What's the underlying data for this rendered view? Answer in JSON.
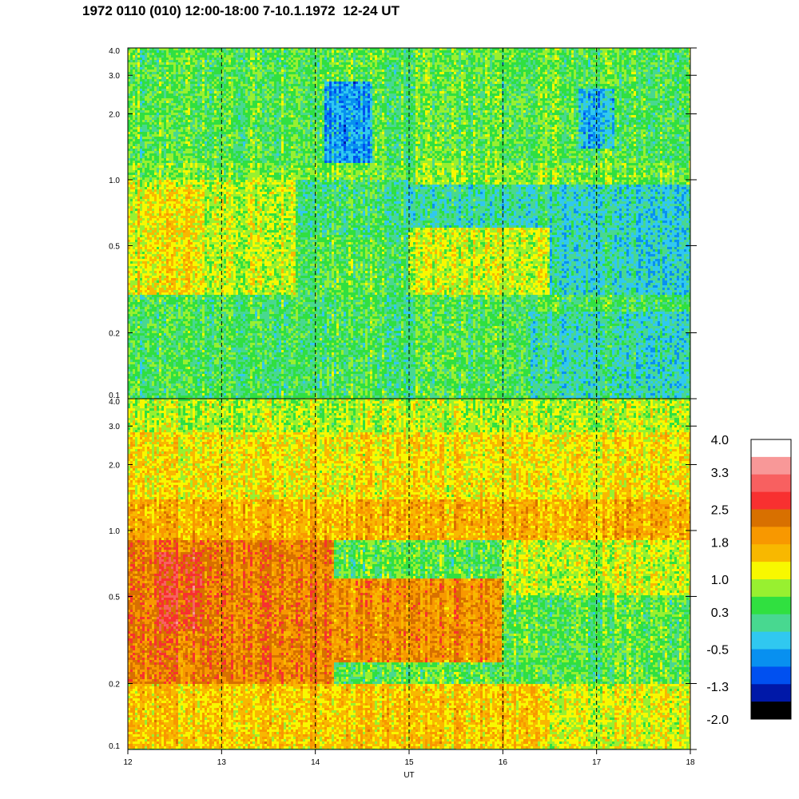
{
  "title": "1972 0110 (010) 12:00-18:00 7-10.1.1972  12-24 UT",
  "colors": {
    "background": "#ffffff",
    "scale": [
      "#000000",
      "#0018a8",
      "#0050f0",
      "#0890f0",
      "#30c8f0",
      "#48d890",
      "#30e040",
      "#98f030",
      "#f8f800",
      "#f8b800",
      "#f89800",
      "#d87000",
      "#f83030",
      "#f86060",
      "#f89898",
      "#ffffff"
    ]
  },
  "chart_data": [
    {
      "type": "heatmap",
      "panel": "upper",
      "title": "",
      "xlabel": "",
      "ylabel": "",
      "x_range": [
        12,
        18
      ],
      "y_range": [
        0.1,
        4.0
      ],
      "y_scale": "log",
      "ytick_labels": [
        "4.0",
        "3.0",
        "2.0",
        "1.0",
        "0.5",
        "0.2",
        "0.1"
      ],
      "yticks": [
        4.0,
        3.0,
        2.0,
        1.0,
        0.5,
        0.2,
        0.1
      ],
      "vlines_dashed": [
        13,
        14,
        15,
        16,
        17
      ],
      "regions": [
        {
          "x": [
            12,
            18
          ],
          "y": [
            1.2,
            4.0
          ],
          "value": 0.5
        },
        {
          "x": [
            14.1,
            14.6
          ],
          "y": [
            1.2,
            2.8
          ],
          "value": -0.6
        },
        {
          "x": [
            16.8,
            17.2
          ],
          "y": [
            1.4,
            2.6
          ],
          "value": -0.4
        },
        {
          "x": [
            12,
            18
          ],
          "y": [
            0.95,
            1.2
          ],
          "value": 0.7
        },
        {
          "x": [
            12,
            13.8
          ],
          "y": [
            0.25,
            1.0
          ],
          "value": 1.0
        },
        {
          "x": [
            12.1,
            12.8
          ],
          "y": [
            0.3,
            0.9
          ],
          "value": 1.3
        },
        {
          "x": [
            13.8,
            15
          ],
          "y": [
            0.55,
            1.0
          ],
          "value": 0.3
        },
        {
          "x": [
            15,
            16.5
          ],
          "y": [
            0.3,
            0.6
          ],
          "value": 1.0
        },
        {
          "x": [
            15,
            18
          ],
          "y": [
            0.6,
            0.95
          ],
          "value": 0.0
        },
        {
          "x": [
            16.5,
            18
          ],
          "y": [
            0.3,
            0.95
          ],
          "value": -0.1
        },
        {
          "x": [
            12,
            18
          ],
          "y": [
            0.1,
            0.3
          ],
          "value": 0.4
        },
        {
          "x": [
            16.3,
            18
          ],
          "y": [
            0.1,
            0.25
          ],
          "value": 0.0
        }
      ]
    },
    {
      "type": "heatmap",
      "panel": "lower",
      "title": "",
      "xlabel": "UT",
      "ylabel": "",
      "x_range": [
        12,
        18
      ],
      "y_range": [
        0.1,
        4.0
      ],
      "y_scale": "log",
      "xtick_labels": [
        "12",
        "13",
        "14",
        "15",
        "16",
        "17",
        "18"
      ],
      "xticks": [
        12,
        13,
        14,
        15,
        16,
        17,
        18
      ],
      "ytick_labels": [
        "4.0",
        "3.0",
        "2.0",
        "1.0",
        "0.5",
        "0.2",
        "0.1"
      ],
      "yticks": [
        4.0,
        3.0,
        2.0,
        1.0,
        0.5,
        0.2,
        0.1
      ],
      "vlines_dashed": [
        13,
        14,
        15,
        16,
        17
      ],
      "regions": [
        {
          "x": [
            12,
            18
          ],
          "y": [
            2.8,
            4.0
          ],
          "value": 0.9
        },
        {
          "x": [
            12,
            18
          ],
          "y": [
            1.4,
            2.8
          ],
          "value": 1.3
        },
        {
          "x": [
            12,
            18
          ],
          "y": [
            0.9,
            1.4
          ],
          "value": 1.7
        },
        {
          "x": [
            12,
            14.2
          ],
          "y": [
            0.2,
            0.9
          ],
          "value": 2.2
        },
        {
          "x": [
            12.3,
            12.8
          ],
          "y": [
            0.35,
            0.8
          ],
          "value": 2.6
        },
        {
          "x": [
            14.2,
            16
          ],
          "y": [
            0.25,
            0.6
          ],
          "value": 2.0
        },
        {
          "x": [
            16,
            18
          ],
          "y": [
            0.5,
            0.9
          ],
          "value": 1.0
        },
        {
          "x": [
            12,
            18
          ],
          "y": [
            0.1,
            0.2
          ],
          "value": 1.5
        },
        {
          "x": [
            16.5,
            18
          ],
          "y": [
            0.1,
            0.2
          ],
          "value": 1.1
        }
      ]
    }
  ],
  "colorbar": {
    "labels": [
      "4.0",
      "3.3",
      "2.5",
      "1.8",
      "1.0",
      "0.3",
      "-0.5",
      "-1.3",
      "-2.0"
    ],
    "values": [
      4.0,
      3.3,
      2.5,
      1.8,
      1.0,
      0.3,
      -0.5,
      -1.3,
      -2.0
    ],
    "range": [
      -2.0,
      4.0
    ]
  }
}
